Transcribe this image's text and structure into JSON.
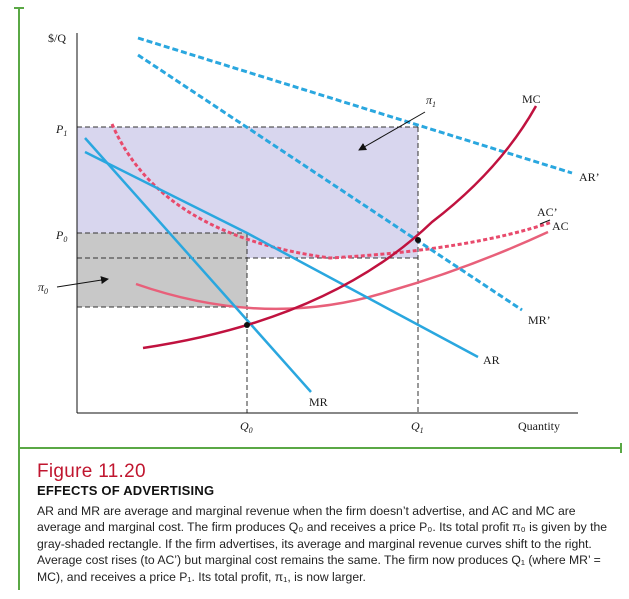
{
  "axes": {
    "y_label": "$/Q",
    "x_label": "Quantity",
    "y_ticks": {
      "p1": "P",
      "p1_sub": "1",
      "p0": "P",
      "p0_sub": "0",
      "pi0": "π",
      "pi0_sub": "0"
    },
    "x_ticks": {
      "q0": "Q",
      "q0_sub": "0",
      "q1": "Q",
      "q1_sub": "1"
    }
  },
  "curves": {
    "ar_prime": "AR’",
    "ar": "AR",
    "mr_prime": "MR’",
    "mr": "MR",
    "mc": "MC",
    "ac_prime": "AC’",
    "ac": "AC"
  },
  "annotations": {
    "pi1": "π",
    "pi1_sub": "1"
  },
  "caption": {
    "figure_label": "Figure 11.20",
    "title": "EFFECTS OF ADVERTISING",
    "body": "AR and MR are average and marginal revenue when the firm doesn’t advertise, and AC and MC are average and marginal cost. The firm produces Q₀ and receives a price P₀. Its total profit π₀ is given by the gray-shaded rectangle. If the firm advertises, its average and marginal revenue curves shift to the right. Average cost rises (to AC’) but marginal cost remains the same. The firm now produces Q₁ (where MR’ = MC), and receives a price P₁. Its total profit, π₁, is now larger."
  },
  "colors": {
    "frame_green": "#5aa845",
    "revenue_blue": "#2aa7df",
    "mc_crimson": "#c0123f",
    "ac_pink": "#e8607a",
    "ac_prime_pink": "#e84a6c",
    "pi1_fill": "#d8d6ee",
    "pi0_fill": "#c8c8c8",
    "title_red": "#c0162f"
  }
}
